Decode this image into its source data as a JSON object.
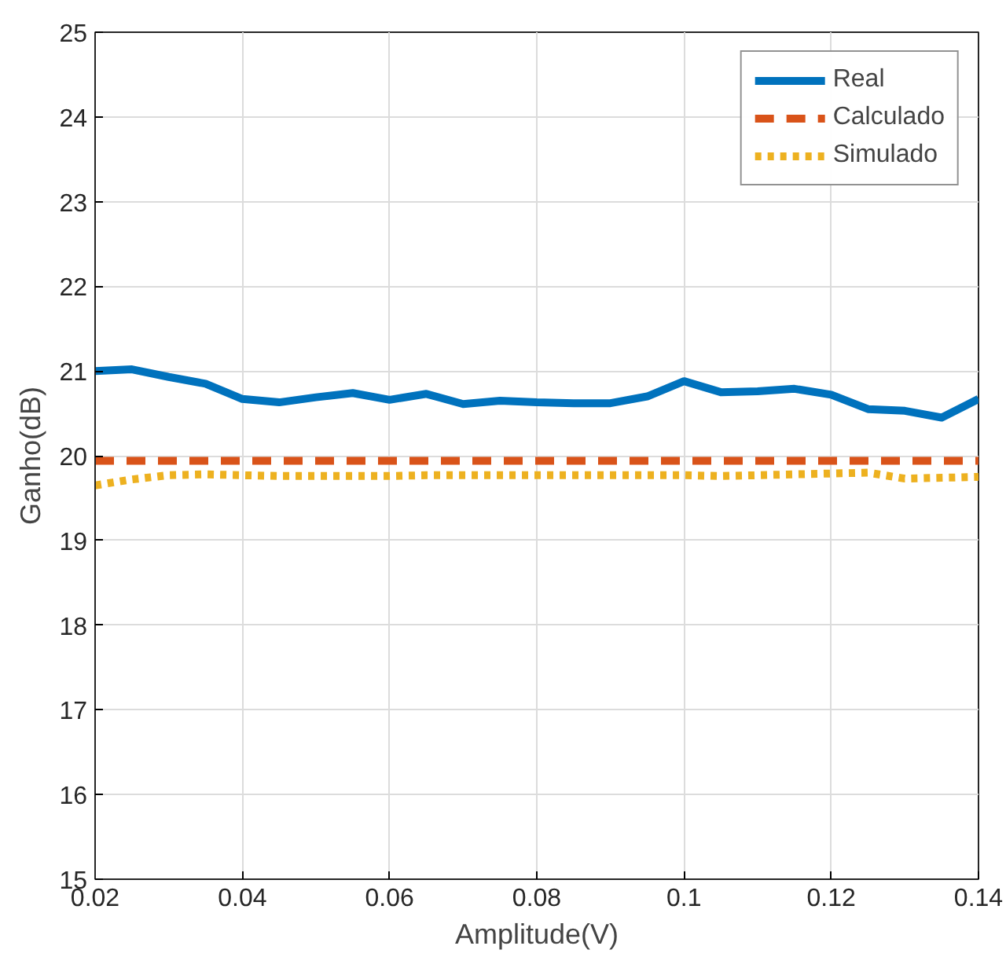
{
  "chart_data": {
    "type": "line",
    "xlabel": "Amplitude(V)",
    "ylabel": "Ganho(dB)",
    "x": [
      0.02,
      0.025,
      0.03,
      0.035,
      0.04,
      0.045,
      0.05,
      0.055,
      0.06,
      0.065,
      0.07,
      0.075,
      0.08,
      0.085,
      0.09,
      0.095,
      0.1,
      0.105,
      0.11,
      0.115,
      0.12,
      0.125,
      0.13,
      0.135,
      0.14
    ],
    "series": [
      {
        "name": "Real",
        "color": "#0072bd",
        "line_style": "solid",
        "values": [
          21.0,
          21.02,
          20.93,
          20.85,
          20.67,
          20.63,
          20.69,
          20.74,
          20.66,
          20.73,
          20.61,
          20.65,
          20.63,
          20.62,
          20.62,
          20.7,
          20.88,
          20.75,
          20.76,
          20.79,
          20.72,
          20.55,
          20.53,
          20.45,
          20.67
        ]
      },
      {
        "name": "Calculado",
        "color": "#d95319",
        "line_style": "dashed",
        "values": [
          19.94,
          19.94,
          19.94,
          19.94,
          19.94,
          19.94,
          19.94,
          19.94,
          19.94,
          19.94,
          19.94,
          19.94,
          19.94,
          19.94,
          19.94,
          19.94,
          19.94,
          19.94,
          19.94,
          19.94,
          19.94,
          19.94,
          19.94,
          19.94,
          19.94
        ]
      },
      {
        "name": "Simulado",
        "color": "#edb120",
        "line_style": "dotted",
        "values": [
          19.65,
          19.72,
          19.77,
          19.78,
          19.77,
          19.76,
          19.76,
          19.76,
          19.76,
          19.77,
          19.77,
          19.77,
          19.77,
          19.77,
          19.77,
          19.77,
          19.77,
          19.76,
          19.77,
          19.78,
          19.79,
          19.8,
          19.73,
          19.74,
          19.75
        ]
      }
    ],
    "xlim": [
      0.02,
      0.14
    ],
    "xticks": [
      0.02,
      0.04,
      0.06,
      0.08,
      {
        "value": 0.1,
        "label": "0.1"
      },
      0.12,
      0.14
    ],
    "ylim": [
      15,
      25
    ],
    "yticks": [
      15,
      16,
      17,
      18,
      19,
      20,
      21,
      22,
      23,
      24,
      25
    ],
    "grid": true,
    "legend": "top right",
    "marker": "none"
  }
}
